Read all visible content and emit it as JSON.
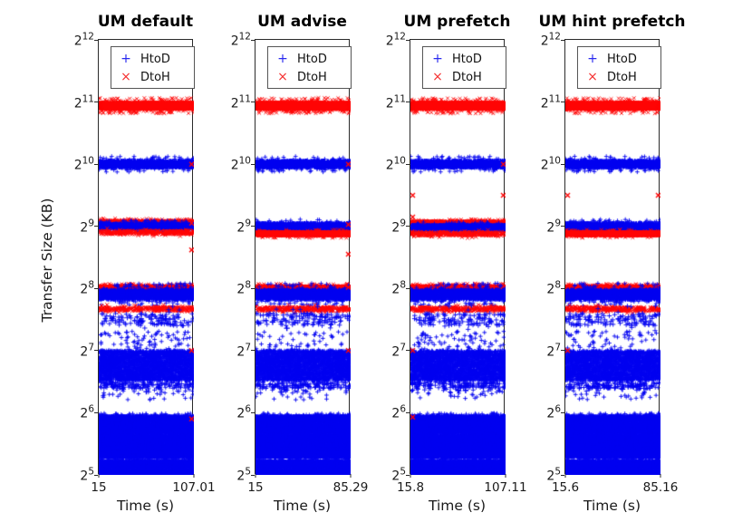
{
  "figure": {
    "background": "#ffffff",
    "text_color": "#1a1a1a"
  },
  "chart_data": {
    "type": "scatter",
    "ylabel": "Transfer Size (KB)",
    "y_scale": "log2",
    "y_base": "2",
    "y_tick_exponents": [
      12,
      11,
      10,
      9,
      8,
      7,
      6,
      5
    ],
    "ylim_log2": [
      5,
      12
    ],
    "grid": false,
    "legend": {
      "position": "top-inside",
      "entries": [
        {
          "label": "HtoD",
          "marker": "+",
          "color": "#2a2af0"
        },
        {
          "label": "DtoH",
          "marker": "×",
          "color": "#f53030"
        }
      ]
    },
    "series_colors": {
      "HtoD": "#0000f0",
      "DtoH": "#ff0505"
    },
    "subplots": [
      {
        "title": "UM default",
        "xlabel": "Time (s)",
        "xlim": [
          15,
          107.01
        ],
        "xtick_labels": [
          "15",
          "107.01"
        ],
        "bands": [
          {
            "series": "DtoH",
            "log2_size": 10.94,
            "spread": 0.055,
            "density": "solid"
          },
          {
            "series": "HtoD",
            "log2_size": 10.0,
            "spread": 0.055,
            "density": "dense"
          },
          {
            "series": "DtoH",
            "log2_size": 9.06,
            "spread": 0.03,
            "density": "dense"
          },
          {
            "series": "HtoD",
            "log2_size": 9.0,
            "spread": 0.04,
            "density": "dense"
          },
          {
            "series": "DtoH",
            "log2_size": 8.9,
            "spread": 0.03,
            "density": "medium"
          },
          {
            "series": "DtoH",
            "log2_size": 8.01,
            "spread": 0.03,
            "density": "dense"
          },
          {
            "series": "HtoD",
            "log2_size": 7.9,
            "spread": 0.08,
            "density": "dense"
          },
          {
            "series": "DtoH",
            "log2_size": 7.67,
            "spread": 0.03,
            "density": "medium"
          },
          {
            "series": "HtoD",
            "log2_size": 7.5,
            "spread": 0.1,
            "density": "sparse"
          },
          {
            "series": "HtoD",
            "log2_size": 6.76,
            "spread": 0.24,
            "density": "solid"
          },
          {
            "series": "HtoD",
            "log2_size": 6.44,
            "spread": 0.05,
            "density": "sparse"
          },
          {
            "series": "HtoD",
            "log2_size": 5.9,
            "spread": 0.04,
            "density": "solid"
          },
          {
            "series": "HtoD",
            "log2_size": 5.75,
            "spread": 0.08,
            "density": "solid"
          },
          {
            "series": "HtoD",
            "log2_size": 5.58,
            "spread": 0.06,
            "density": "solid"
          },
          {
            "series": "HtoD",
            "log2_size": 5.44,
            "spread": 0.05,
            "density": "solid"
          },
          {
            "series": "HtoD",
            "log2_size": 5.33,
            "spread": 0.035,
            "density": "solid"
          },
          {
            "series": "HtoD",
            "log2_size": 5.17,
            "spread": 0.05,
            "density": "solid"
          },
          {
            "series": "HtoD",
            "log2_size": 5.04,
            "spread": 0.042,
            "density": "solid"
          }
        ],
        "points": [
          {
            "series": "DtoH",
            "x": 1.0,
            "log2_size": 10.0
          },
          {
            "series": "DtoH",
            "x": 1.0,
            "log2_size": 9.05
          },
          {
            "series": "DtoH",
            "x": 1.0,
            "log2_size": 8.62
          },
          {
            "series": "DtoH",
            "x": 1.0,
            "log2_size": 7.0
          },
          {
            "series": "DtoH",
            "x": 1.0,
            "log2_size": 5.9
          },
          {
            "series": "HtoD",
            "x": 0.22,
            "log2_size": 6.42
          },
          {
            "series": "HtoD",
            "x": 0.5,
            "log2_size": 6.34
          }
        ]
      },
      {
        "title": "UM advise",
        "xlabel": "Time (s)",
        "xlim": [
          15,
          85.29
        ],
        "xtick_labels": [
          "15",
          "85.29"
        ],
        "bands": [
          {
            "series": "DtoH",
            "log2_size": 10.94,
            "spread": 0.055,
            "density": "solid"
          },
          {
            "series": "HtoD",
            "log2_size": 10.0,
            "spread": 0.055,
            "density": "dense"
          },
          {
            "series": "HtoD",
            "log2_size": 9.0,
            "spread": 0.05,
            "density": "dense"
          },
          {
            "series": "DtoH",
            "log2_size": 8.88,
            "spread": 0.03,
            "density": "dense"
          },
          {
            "series": "DtoH",
            "log2_size": 8.01,
            "spread": 0.03,
            "density": "dense"
          },
          {
            "series": "HtoD",
            "log2_size": 7.9,
            "spread": 0.08,
            "density": "dense"
          },
          {
            "series": "DtoH",
            "log2_size": 7.67,
            "spread": 0.03,
            "density": "medium"
          },
          {
            "series": "HtoD",
            "log2_size": 7.5,
            "spread": 0.1,
            "density": "sparse"
          },
          {
            "series": "HtoD",
            "log2_size": 6.76,
            "spread": 0.24,
            "density": "solid"
          },
          {
            "series": "HtoD",
            "log2_size": 6.44,
            "spread": 0.05,
            "density": "sparse"
          },
          {
            "series": "HtoD",
            "log2_size": 5.9,
            "spread": 0.04,
            "density": "solid"
          },
          {
            "series": "HtoD",
            "log2_size": 5.75,
            "spread": 0.08,
            "density": "solid"
          },
          {
            "series": "HtoD",
            "log2_size": 5.58,
            "spread": 0.06,
            "density": "solid"
          },
          {
            "series": "HtoD",
            "log2_size": 5.44,
            "spread": 0.05,
            "density": "solid"
          },
          {
            "series": "HtoD",
            "log2_size": 5.33,
            "spread": 0.035,
            "density": "solid"
          },
          {
            "series": "HtoD",
            "log2_size": 5.17,
            "spread": 0.05,
            "density": "solid"
          },
          {
            "series": "HtoD",
            "log2_size": 5.04,
            "spread": 0.042,
            "density": "solid"
          }
        ],
        "points": [
          {
            "series": "DtoH",
            "x": 1.0,
            "log2_size": 10.0
          },
          {
            "series": "DtoH",
            "x": 1.0,
            "log2_size": 9.03
          },
          {
            "series": "DtoH",
            "x": 1.0,
            "log2_size": 8.55
          },
          {
            "series": "DtoH",
            "x": 1.0,
            "log2_size": 8.02
          },
          {
            "series": "DtoH",
            "x": 1.0,
            "log2_size": 7.0
          },
          {
            "series": "HtoD",
            "x": 0.18,
            "log2_size": 7.46
          },
          {
            "series": "HtoD",
            "x": 0.33,
            "log2_size": 7.36
          },
          {
            "series": "HtoD",
            "x": 0.45,
            "log2_size": 6.4
          },
          {
            "series": "HtoD",
            "x": 0.56,
            "log2_size": 6.42
          }
        ]
      },
      {
        "title": "UM prefetch",
        "xlabel": "Time (s)",
        "xlim": [
          15.8,
          107.11
        ],
        "xtick_labels": [
          "15.8",
          "107.11"
        ],
        "bands": [
          {
            "series": "DtoH",
            "log2_size": 10.94,
            "spread": 0.055,
            "density": "solid"
          },
          {
            "series": "HtoD",
            "log2_size": 10.0,
            "spread": 0.055,
            "density": "dense"
          },
          {
            "series": "DtoH",
            "log2_size": 9.05,
            "spread": 0.03,
            "density": "dense"
          },
          {
            "series": "HtoD",
            "log2_size": 8.98,
            "spread": 0.04,
            "density": "dense"
          },
          {
            "series": "DtoH",
            "log2_size": 8.88,
            "spread": 0.03,
            "density": "medium"
          },
          {
            "series": "DtoH",
            "log2_size": 8.01,
            "spread": 0.03,
            "density": "dense"
          },
          {
            "series": "HtoD",
            "log2_size": 7.9,
            "spread": 0.08,
            "density": "dense"
          },
          {
            "series": "DtoH",
            "log2_size": 7.67,
            "spread": 0.03,
            "density": "medium"
          },
          {
            "series": "HtoD",
            "log2_size": 7.5,
            "spread": 0.1,
            "density": "sparse"
          },
          {
            "series": "HtoD",
            "log2_size": 6.76,
            "spread": 0.24,
            "density": "solid"
          },
          {
            "series": "HtoD",
            "log2_size": 6.44,
            "spread": 0.05,
            "density": "sparse"
          },
          {
            "series": "HtoD",
            "log2_size": 5.9,
            "spread": 0.04,
            "density": "solid"
          },
          {
            "series": "HtoD",
            "log2_size": 5.75,
            "spread": 0.08,
            "density": "solid"
          },
          {
            "series": "HtoD",
            "log2_size": 5.58,
            "spread": 0.06,
            "density": "solid"
          },
          {
            "series": "HtoD",
            "log2_size": 5.44,
            "spread": 0.05,
            "density": "solid"
          },
          {
            "series": "HtoD",
            "log2_size": 5.33,
            "spread": 0.035,
            "density": "solid"
          },
          {
            "series": "HtoD",
            "log2_size": 5.17,
            "spread": 0.05,
            "density": "solid"
          },
          {
            "series": "HtoD",
            "log2_size": 5.04,
            "spread": 0.042,
            "density": "solid"
          }
        ],
        "points": [
          {
            "series": "DtoH",
            "x": 0.0,
            "log2_size": 9.5
          },
          {
            "series": "DtoH",
            "x": 1.0,
            "log2_size": 9.5
          },
          {
            "series": "DtoH",
            "x": 0.0,
            "log2_size": 9.15
          },
          {
            "series": "DtoH",
            "x": 1.0,
            "log2_size": 10.0
          },
          {
            "series": "DtoH",
            "x": 0.0,
            "log2_size": 7.0
          },
          {
            "series": "DtoH",
            "x": 0.0,
            "log2_size": 5.93
          },
          {
            "series": "HtoD",
            "x": 0.5,
            "log2_size": 6.36
          },
          {
            "series": "HtoD",
            "x": 0.58,
            "log2_size": 6.36
          }
        ]
      },
      {
        "title": "UM hint prefetch",
        "xlabel": "Time (s)",
        "xlim": [
          15.6,
          85.16
        ],
        "xtick_labels": [
          "15.6",
          "85.16"
        ],
        "bands": [
          {
            "series": "DtoH",
            "log2_size": 10.94,
            "spread": 0.055,
            "density": "solid"
          },
          {
            "series": "HtoD",
            "log2_size": 10.0,
            "spread": 0.055,
            "density": "dense"
          },
          {
            "series": "HtoD",
            "log2_size": 9.0,
            "spread": 0.05,
            "density": "dense"
          },
          {
            "series": "DtoH",
            "log2_size": 8.88,
            "spread": 0.03,
            "density": "dense"
          },
          {
            "series": "DtoH",
            "log2_size": 8.01,
            "spread": 0.03,
            "density": "dense"
          },
          {
            "series": "HtoD",
            "log2_size": 7.9,
            "spread": 0.08,
            "density": "dense"
          },
          {
            "series": "DtoH",
            "log2_size": 7.67,
            "spread": 0.03,
            "density": "medium"
          },
          {
            "series": "HtoD",
            "log2_size": 7.5,
            "spread": 0.1,
            "density": "sparse"
          },
          {
            "series": "HtoD",
            "log2_size": 6.76,
            "spread": 0.24,
            "density": "solid"
          },
          {
            "series": "HtoD",
            "log2_size": 6.44,
            "spread": 0.05,
            "density": "sparse"
          },
          {
            "series": "HtoD",
            "log2_size": 5.9,
            "spread": 0.04,
            "density": "solid"
          },
          {
            "series": "HtoD",
            "log2_size": 5.75,
            "spread": 0.08,
            "density": "solid"
          },
          {
            "series": "HtoD",
            "log2_size": 5.58,
            "spread": 0.06,
            "density": "solid"
          },
          {
            "series": "HtoD",
            "log2_size": 5.44,
            "spread": 0.05,
            "density": "solid"
          },
          {
            "series": "HtoD",
            "log2_size": 5.33,
            "spread": 0.035,
            "density": "solid"
          },
          {
            "series": "HtoD",
            "log2_size": 5.17,
            "spread": 0.05,
            "density": "solid"
          },
          {
            "series": "HtoD",
            "log2_size": 5.04,
            "spread": 0.042,
            "density": "solid"
          }
        ],
        "points": [
          {
            "series": "DtoH",
            "x": 0.0,
            "log2_size": 9.5
          },
          {
            "series": "DtoH",
            "x": 1.0,
            "log2_size": 9.5
          },
          {
            "series": "DtoH",
            "x": 0.0,
            "log2_size": 7.0
          },
          {
            "series": "HtoD",
            "x": 0.28,
            "log2_size": 7.45
          },
          {
            "series": "HtoD",
            "x": 0.52,
            "log2_size": 6.4
          },
          {
            "series": "HtoD",
            "x": 0.6,
            "log2_size": 6.38
          }
        ]
      }
    ]
  }
}
